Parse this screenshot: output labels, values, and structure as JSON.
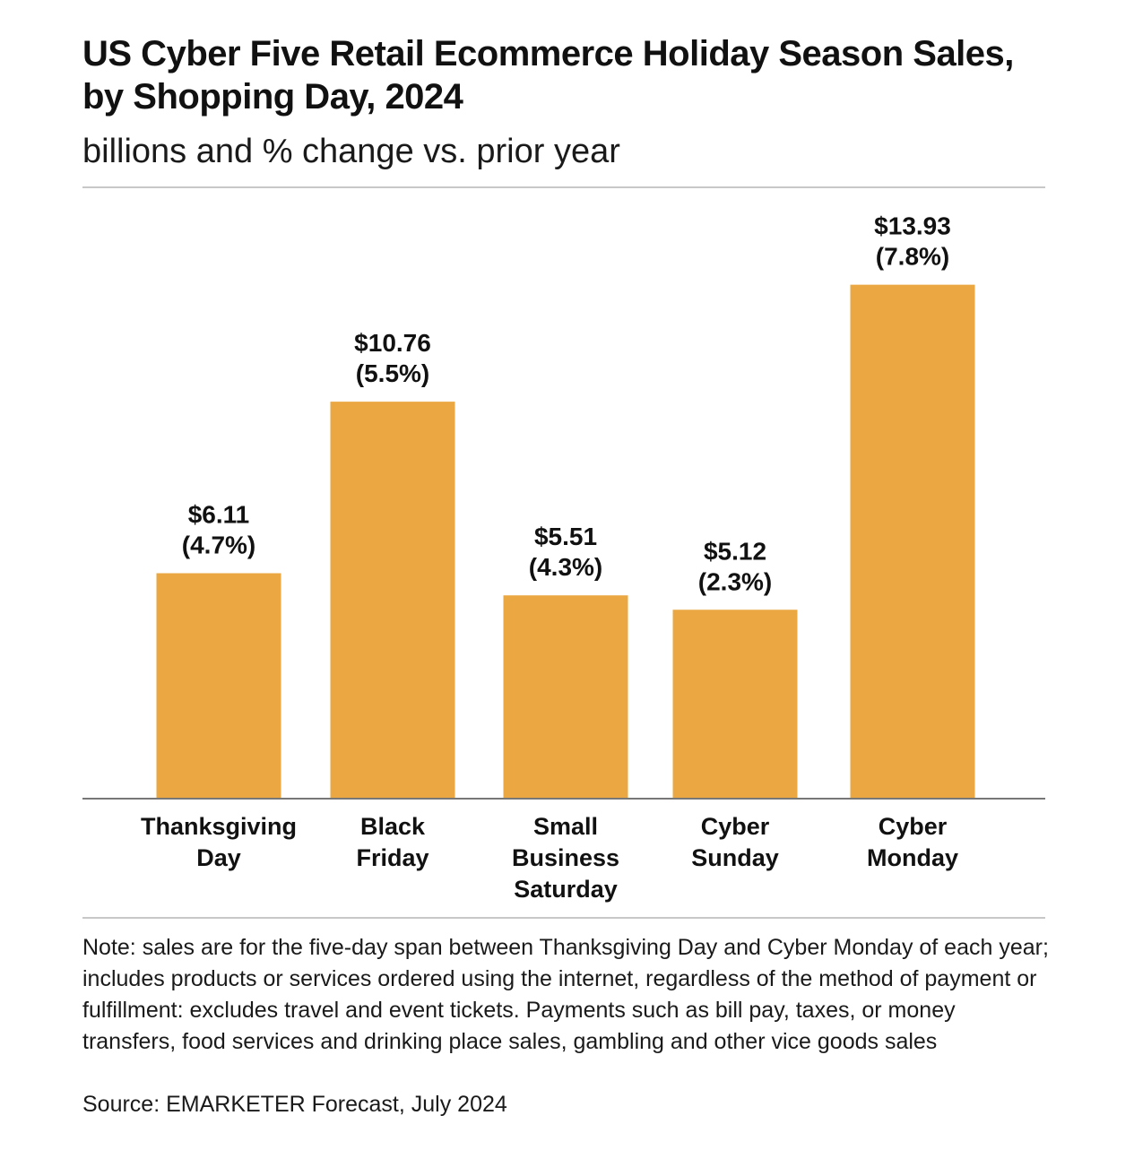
{
  "header": {
    "title": "US Cyber Five Retail Ecommerce Holiday Season Sales, by Shopping Day, 2024",
    "subtitle": "billions and % change vs. prior year"
  },
  "footer": {
    "note": "Note: sales are for the five-day span between Thanksgiving Day and Cyber Monday of each year; includes products or services ordered using the internet, regardless of the method of payment or fulfillment: excludes travel and event tickets. Payments such as bill pay, taxes, or money transfers, food services and drinking place sales, gambling and other vice goods sales",
    "source": "Source: EMARKETER Forecast, July 2024"
  },
  "chart_data": {
    "type": "bar",
    "title": "US Cyber Five Retail Ecommerce Holiday Season Sales, by Shopping Day, 2024",
    "subtitle": "billions and % change vs. prior year",
    "categories": [
      [
        "Thanksgiving",
        "Day"
      ],
      [
        "Black",
        "Friday"
      ],
      [
        "Small",
        "Business",
        "Saturday"
      ],
      [
        "Cyber",
        "Sunday"
      ],
      [
        "Cyber",
        "Monday"
      ]
    ],
    "values": [
      6.11,
      10.76,
      5.51,
      5.12,
      13.93
    ],
    "pct_change": [
      4.7,
      5.5,
      4.3,
      2.3,
      7.8
    ],
    "value_labels": [
      "$6.11",
      "$10.76",
      "$5.51",
      "$5.12",
      "$13.93"
    ],
    "pct_labels": [
      "(4.7%)",
      "(5.5%)",
      "(4.3%)",
      "(2.3%)",
      "(7.8%)"
    ],
    "xlabel": "",
    "ylabel": "",
    "grid": false,
    "legend": "none",
    "bar_color": "#eba842",
    "axis_color": "#777777"
  }
}
